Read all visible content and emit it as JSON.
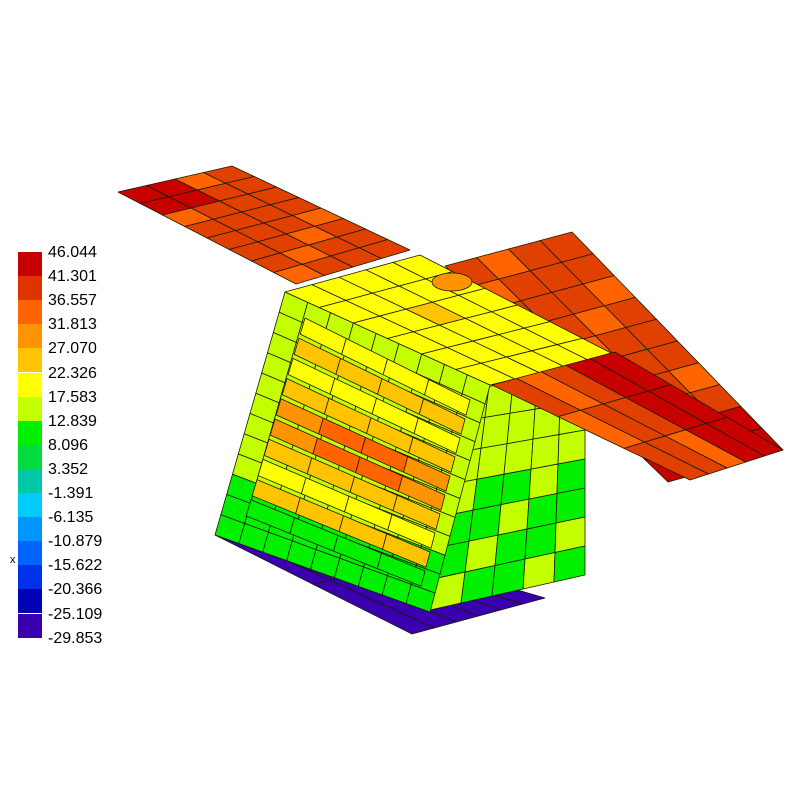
{
  "legend": {
    "labels": [
      "46.044",
      "41.301",
      "36.557",
      "31.813",
      "27.070",
      "22.326",
      "17.583",
      "12.839",
      "8.096",
      "3.352",
      "-1.391",
      "-6.135",
      "-10.879",
      "-15.622",
      "-20.366",
      "-25.109",
      "-29.853"
    ],
    "colors": [
      "#c40000",
      "#e03400",
      "#ff6400",
      "#ff9400",
      "#ffc400",
      "#ffff00",
      "#c4ff00",
      "#00f000",
      "#00dc40",
      "#00c8a8",
      "#00ccff",
      "#0096ff",
      "#0064ff",
      "#0030e8",
      "#0000b4",
      "#3a00b0"
    ]
  },
  "axis_label": "x",
  "model_colors": {
    "solar_panel": "#e04000",
    "solar_panel_hot": "#c80000",
    "top_face": "#ffff00",
    "side_frame": "#c4ff00",
    "side_lower": "#00f000",
    "internal_hot": "#ff9400",
    "base_plate": "#3a00b0"
  }
}
